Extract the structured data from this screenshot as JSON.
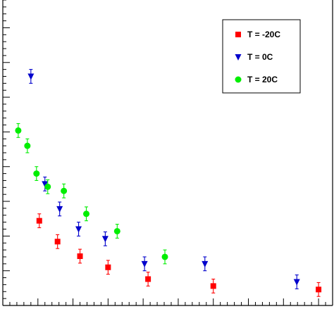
{
  "chart_data": {
    "type": "scatter",
    "title": "",
    "xlabel": "",
    "ylabel": "",
    "xlim": [
      0,
      47
    ],
    "ylim": [
      0,
      44
    ],
    "grid": false,
    "legend_position": "top-right",
    "error_bars": true,
    "series": [
      {
        "name": "T = -20C",
        "marker": "square",
        "color": "#ff0000",
        "points": [
          {
            "x": 5.2,
            "y": 12.2,
            "err": 1.0
          },
          {
            "x": 7.8,
            "y": 9.2,
            "err": 1.0
          },
          {
            "x": 11.0,
            "y": 7.1,
            "err": 1.0
          },
          {
            "x": 15.0,
            "y": 5.5,
            "err": 1.0
          },
          {
            "x": 20.7,
            "y": 3.8,
            "err": 1.0
          },
          {
            "x": 30.0,
            "y": 2.8,
            "err": 1.0
          },
          {
            "x": 45.0,
            "y": 2.3,
            "err": 1.0
          }
        ]
      },
      {
        "name": "T = 0C",
        "marker": "triangle-down",
        "color": "#0000cc",
        "points": [
          {
            "x": 4.0,
            "y": 33.0,
            "err": 1.0
          },
          {
            "x": 6.0,
            "y": 17.5,
            "err": 1.0
          },
          {
            "x": 8.1,
            "y": 13.9,
            "err": 1.0
          },
          {
            "x": 10.8,
            "y": 11.0,
            "err": 1.0
          },
          {
            "x": 14.6,
            "y": 9.6,
            "err": 1.0
          },
          {
            "x": 20.2,
            "y": 6.0,
            "err": 1.0
          },
          {
            "x": 28.8,
            "y": 6.0,
            "err": 1.0
          },
          {
            "x": 41.9,
            "y": 3.4,
            "err": 1.0
          }
        ]
      },
      {
        "name": "T = 20C",
        "marker": "circle",
        "color": "#00ee00",
        "points": [
          {
            "x": 2.2,
            "y": 25.2,
            "err": 1.0
          },
          {
            "x": 3.5,
            "y": 23.0,
            "err": 1.0
          },
          {
            "x": 4.8,
            "y": 19.0,
            "err": 1.0
          },
          {
            "x": 6.4,
            "y": 17.1,
            "err": 1.0
          },
          {
            "x": 8.7,
            "y": 16.5,
            "err": 1.0
          },
          {
            "x": 11.9,
            "y": 13.2,
            "err": 1.0
          },
          {
            "x": 16.3,
            "y": 10.7,
            "err": 1.0
          },
          {
            "x": 23.1,
            "y": 7.0,
            "err": 1.0
          }
        ]
      }
    ]
  }
}
